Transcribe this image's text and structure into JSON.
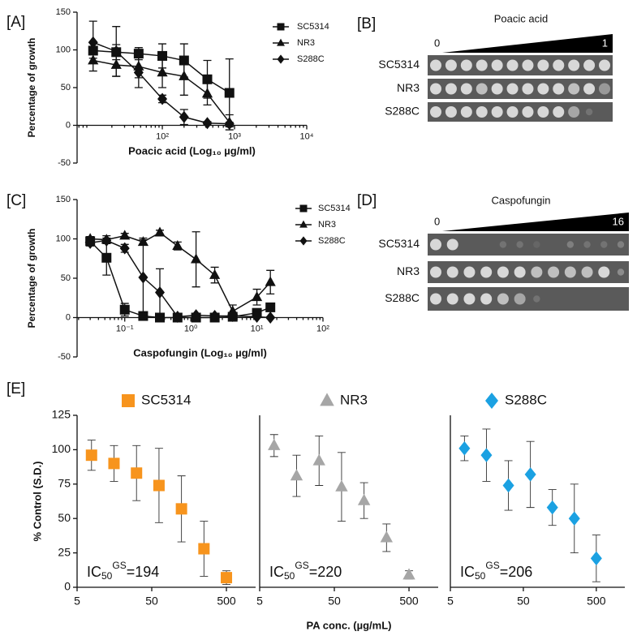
{
  "chart_data": [
    {
      "type": "line",
      "label": "[A]",
      "xlabel": "Poacic acid (Log₁₀ µg/ml)",
      "ylabel": "Percentage of growth",
      "xlog": true,
      "x": [
        11,
        23,
        47,
        100,
        200,
        420,
        850
      ],
      "xlim": [
        6.6,
        10000
      ],
      "xticks": [
        {
          "value": 100,
          "label": "10²"
        },
        {
          "value": 1000,
          "label": "10³"
        },
        {
          "value": 10000,
          "label": "10⁴"
        }
      ],
      "ylim": [
        -50,
        150
      ],
      "yticks": [
        -50,
        0,
        50,
        100,
        150
      ],
      "line": true,
      "color": "#111111",
      "series": [
        {
          "name": "SC5314",
          "marker": "square",
          "values": [
            99,
            97,
            95,
            92,
            86,
            61,
            43
          ],
          "errors": [
            10,
            10,
            8,
            16,
            22,
            25,
            45
          ]
        },
        {
          "name": "NR3",
          "marker": "triangle",
          "values": [
            86,
            80,
            78,
            70,
            65,
            42,
            4
          ],
          "errors": [
            14,
            15,
            15,
            20,
            25,
            15,
            10
          ]
        },
        {
          "name": "S288C",
          "marker": "diamond",
          "values": [
            110,
            98,
            70,
            35,
            11,
            3,
            2
          ],
          "errors": [
            28,
            33,
            20,
            5,
            10,
            2,
            2
          ]
        }
      ]
    },
    {
      "type": "line",
      "label": "[C]",
      "xlabel": "Caspofungin (Log₁₀ µg/ml)",
      "ylabel": "Percentage of growth",
      "xlog": true,
      "x": [
        0.03,
        0.053,
        0.1,
        0.19,
        0.34,
        0.63,
        1.2,
        2.3,
        4.3,
        10,
        16
      ],
      "xlim": [
        0.019,
        100
      ],
      "xticks": [
        {
          "value": 0.1,
          "label": "10⁻¹"
        },
        {
          "value": 1,
          "label": "10⁰"
        },
        {
          "value": 10,
          "label": "10¹"
        },
        {
          "value": 100,
          "label": "10²"
        }
      ],
      "ylim": [
        -50,
        150
      ],
      "yticks": [
        -50,
        0,
        50,
        100,
        150
      ],
      "line": true,
      "color": "#111111",
      "series": [
        {
          "name": "SC5314",
          "marker": "square",
          "values": [
            97,
            76,
            10,
            2,
            0,
            0,
            0,
            0,
            1,
            6,
            13
          ],
          "errors": [
            4,
            22,
            8,
            3,
            2,
            1,
            1,
            1,
            2,
            5,
            2
          ]
        },
        {
          "name": "NR3",
          "marker": "triangle",
          "values": [
            100,
            99,
            104,
            96,
            108,
            91,
            74,
            54,
            8,
            26,
            45
          ],
          "errors": [
            3,
            5,
            3,
            3,
            3,
            5,
            35,
            10,
            8,
            10,
            15
          ]
        },
        {
          "name": "S288C",
          "marker": "diamond",
          "values": [
            95,
            98,
            88,
            51,
            32,
            1,
            3,
            2,
            2,
            1,
            0
          ],
          "errors": [
            4,
            3,
            5,
            50,
            30,
            1,
            1,
            1,
            1,
            1,
            1
          ]
        }
      ]
    },
    {
      "type": "scatter",
      "label": "[E]",
      "ylabel": "% Control (S.D.)",
      "xlog": true,
      "x": [
        7.8,
        15.6,
        31.25,
        62.5,
        125,
        250,
        500
      ],
      "xlim": [
        5,
        1230
      ],
      "xticks": [
        5,
        50,
        500
      ],
      "ylim": [
        0,
        125
      ],
      "yticks": [
        0,
        25,
        50,
        75,
        100,
        125
      ],
      "line": false,
      "series": [
        {
          "name": "SC5314",
          "marker": "square",
          "color": "#f7941d",
          "values": [
            96,
            90,
            83,
            74,
            57,
            28,
            7
          ],
          "errors": [
            11,
            13,
            20,
            27,
            24,
            20,
            5
          ]
        }
      ],
      "annotation": {
        "base": "IC",
        "sub": "50",
        "sup": "GS",
        "text": "=194"
      }
    },
    {
      "type": "scatter",
      "xlabel": "PA conc. (µg/mL)",
      "xlog": true,
      "x": [
        7.8,
        15.6,
        31.25,
        62.5,
        125,
        250,
        500
      ],
      "xlim": [
        5,
        1230
      ],
      "xticks": [
        5,
        50,
        500
      ],
      "ylim": [
        0,
        125
      ],
      "line": false,
      "series": [
        {
          "name": "NR3",
          "marker": "triangle",
          "color": "#a6a6a6",
          "values": [
            103,
            81,
            92,
            73,
            63,
            36,
            9
          ],
          "errors": [
            8,
            15,
            18,
            25,
            13,
            10,
            3
          ]
        }
      ],
      "annotation": {
        "base": "IC",
        "sub": "50",
        "sup": "GS",
        "text": "=220"
      }
    },
    {
      "type": "scatter",
      "xlog": true,
      "x": [
        7.8,
        15.6,
        31.25,
        62.5,
        125,
        250,
        500
      ],
      "xlim": [
        5,
        1230
      ],
      "xticks": [
        5,
        50,
        500
      ],
      "ylim": [
        0,
        125
      ],
      "line": false,
      "series": [
        {
          "name": "S288C",
          "marker": "diamond",
          "color": "#1ba1e2",
          "values": [
            101,
            96,
            74,
            82,
            58,
            50,
            21
          ],
          "errors": [
            9,
            19,
            18,
            24,
            13,
            25,
            17
          ]
        }
      ],
      "annotation": {
        "base": "IC",
        "sub": "50",
        "sup": "GS",
        "text": "=206"
      }
    }
  ],
  "spot_assays": [
    {
      "label": "[B]",
      "title": "Poacic acid",
      "min": 0,
      "max": 1,
      "rows": [
        "SC5314",
        "NR3",
        "S288C"
      ]
    },
    {
      "label": "[D]",
      "title": "Caspofungin",
      "min": 0,
      "max": 16,
      "rows": [
        "SC5314",
        "NR3",
        "S288C"
      ]
    }
  ]
}
